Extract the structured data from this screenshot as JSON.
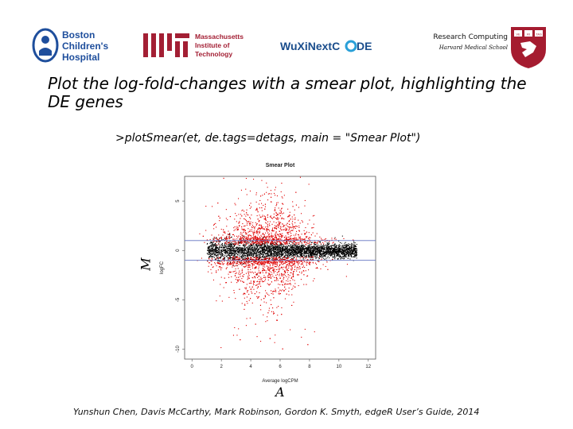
{
  "header": {
    "logos": [
      {
        "name": "boston-childrens-hospital-logo",
        "text": "Boston Children's Hospital"
      },
      {
        "name": "mit-logo",
        "text": "Massachusetts Institute of Technology"
      },
      {
        "name": "wuxi-nextcode-logo",
        "text": "WuXiNextCODE"
      },
      {
        "name": "harvard-shield-logo",
        "text": "VE RI TAS"
      }
    ],
    "research_computing": "Research Computing",
    "school": "Harvard Medical School"
  },
  "slide": {
    "title": "Plot the log-fold-changes with a smear plot, highlighting the DE genes",
    "code": ">plotSmear(et, de.tags=detags, main = \"Smear Plot\")",
    "overlay_m": "M",
    "overlay_a": "A",
    "citation": "Yunshun Chen, Davis McCarthy, Mark Robinson, Gordon K. Smyth, edgeR User’s Guide, 2014"
  },
  "chart_data": {
    "type": "scatter",
    "title": "Smear Plot",
    "xlabel": "Average logCPM",
    "ylabel": "logFC",
    "xlim": [
      -0.5,
      12.5
    ],
    "ylim": [
      -11,
      7.5
    ],
    "xticks": [
      0,
      2,
      4,
      6,
      8,
      10,
      12
    ],
    "yticks": [
      -10,
      -5,
      0,
      5
    ],
    "hlines": [
      -1,
      1
    ],
    "series": [
      {
        "name": "",
        "color": "#000000",
        "description_points": "non-DE genes concentrated near logFC 0, spanning logCPM ~1 to ~11"
      },
      {
        "name": "",
        "color": "#e00000",
        "description_points": "DE genes spread widely, densest near logCPM 4-7, logFC from about -10 to 6"
      }
    ],
    "colors": {
      "hline": "#6070c0",
      "non_de": "#000000",
      "de": "#e00000"
    }
  }
}
